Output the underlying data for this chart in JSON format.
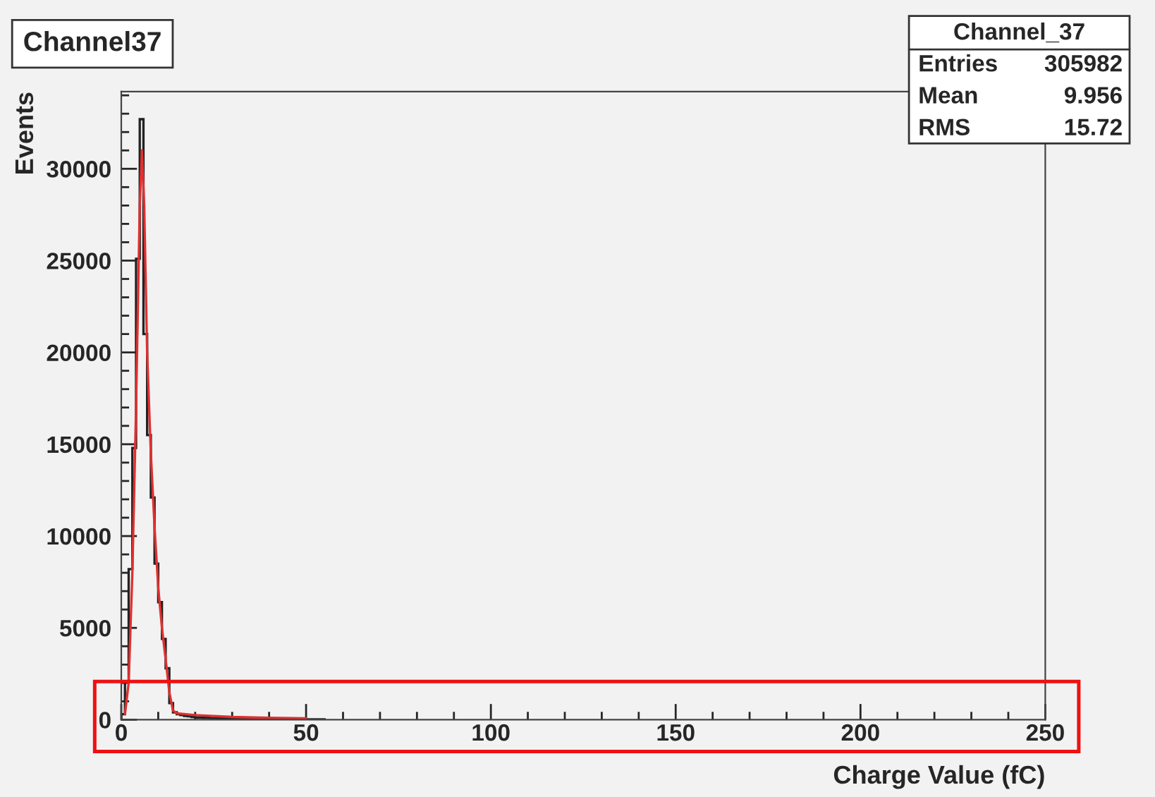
{
  "chart_data": {
    "type": "histogram",
    "title": "Channel37",
    "xlabel": "Charge Value (fC)",
    "ylabel": "Events",
    "bins": [
      0,
      1,
      2,
      3,
      4,
      5,
      6,
      7,
      8,
      9,
      10,
      11,
      12,
      13,
      14,
      15,
      16,
      17,
      18,
      19,
      20,
      22,
      24,
      26,
      28,
      30,
      35,
      40,
      45,
      50,
      55
    ],
    "values": [
      300,
      2100,
      8200,
      14800,
      25100,
      32700,
      21000,
      15500,
      12100,
      8500,
      6400,
      4400,
      2800,
      900,
      400,
      300,
      250,
      200,
      180,
      150,
      120,
      100,
      90,
      80,
      70,
      60,
      50,
      40,
      40,
      20
    ],
    "color": "#222222",
    "series": [
      {
        "type": "line",
        "color": "#e03030",
        "x": [
          1,
          2,
          3,
          4,
          5,
          5.6,
          6.2,
          7,
          8,
          9,
          10,
          11,
          12,
          13,
          14,
          15,
          20,
          30,
          40,
          50
        ],
        "values": [
          300,
          2000,
          8000,
          17000,
          28000,
          31000,
          28000,
          20000,
          14500,
          10500,
          7200,
          5000,
          3300,
          1500,
          500,
          350,
          250,
          150,
          100,
          80
        ]
      }
    ],
    "xlim": [
      0,
      250
    ],
    "xticks": [
      0,
      50,
      100,
      150,
      200,
      250
    ],
    "ylim": [
      0,
      34200
    ],
    "yticks": [
      0,
      5000,
      10000,
      15000,
      20000,
      25000,
      30000
    ],
    "grid": false,
    "annotations": [
      "Channel_37",
      "Entries",
      "305982",
      "Mean",
      "9.956",
      "RMS",
      "15.72"
    ]
  }
}
